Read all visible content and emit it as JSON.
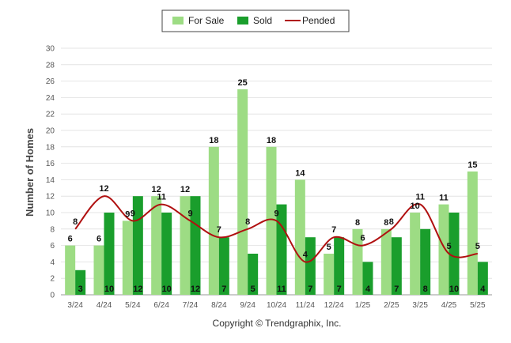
{
  "chart_data": {
    "type": "bar",
    "ylabel": "Number of Homes",
    "xlabel": "",
    "ylim": [
      0,
      30
    ],
    "ytick_step": 2,
    "grid": true,
    "legend_position": "top-center",
    "categories": [
      "3/24",
      "4/24",
      "5/24",
      "6/24",
      "7/24",
      "8/24",
      "9/24",
      "10/24",
      "11/24",
      "12/24",
      "1/25",
      "2/25",
      "3/25",
      "4/25",
      "5/25"
    ],
    "series": [
      {
        "name": "For Sale",
        "kind": "bar",
        "color": "#9ddc84",
        "values": [
          6,
          6,
          9,
          12,
          12,
          18,
          25,
          18,
          14,
          5,
          8,
          8,
          10,
          11,
          15
        ]
      },
      {
        "name": "Sold",
        "kind": "bar",
        "color": "#1a9e2c",
        "values": [
          3,
          10,
          12,
          10,
          12,
          7,
          5,
          11,
          7,
          7,
          4,
          7,
          8,
          10,
          4
        ]
      },
      {
        "name": "Pended",
        "kind": "line",
        "color": "#b01010",
        "values": [
          8,
          12,
          9,
          11,
          9,
          7,
          8,
          9,
          4,
          7,
          6,
          8,
          11,
          5,
          5
        ]
      }
    ]
  },
  "copyright": "Copyright © Trendgraphix, Inc."
}
